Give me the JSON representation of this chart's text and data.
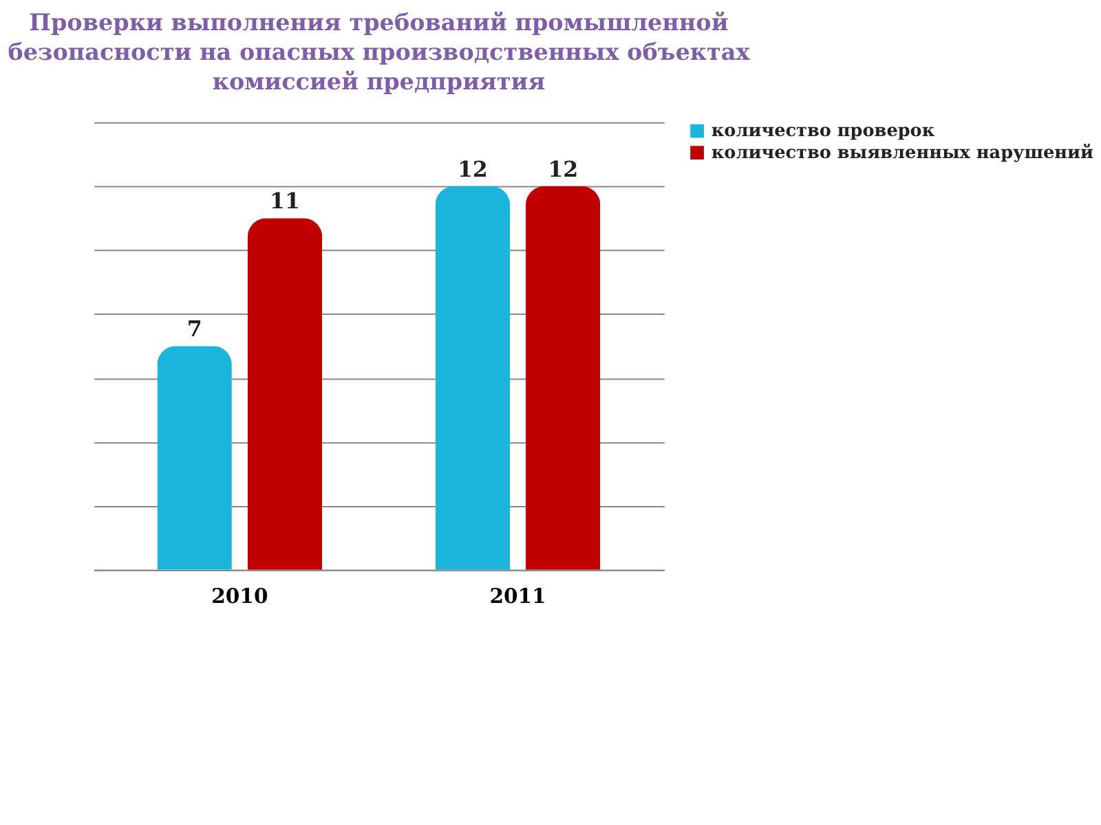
{
  "chart_data": {
    "type": "bar",
    "title": "Проверки выполнения требований промышленной безопасности на опасных производственных объектах комиссией предприятия",
    "categories": [
      "2010",
      "2011"
    ],
    "series": [
      {
        "name": "количество проверок",
        "color": "#1ab4dc",
        "values": [
          7,
          12
        ]
      },
      {
        "name": "количество выявленных нарушений",
        "color": "#c00000",
        "values": [
          11,
          12
        ]
      }
    ],
    "ylim": [
      0,
      14
    ],
    "yticks": [
      {
        "value": 0,
        "label": null
      },
      {
        "value": 2,
        "label": null
      },
      {
        "value": 4,
        "label": null
      },
      {
        "value": 6,
        "label": null
      },
      {
        "value": 8,
        "label": null
      },
      {
        "value": 10,
        "label": null
      },
      {
        "value": 12,
        "label": null
      },
      {
        "value": 14,
        "label": null
      }
    ],
    "tick_labels": "x",
    "grid": "y",
    "legend": "right",
    "data_labels": true
  }
}
